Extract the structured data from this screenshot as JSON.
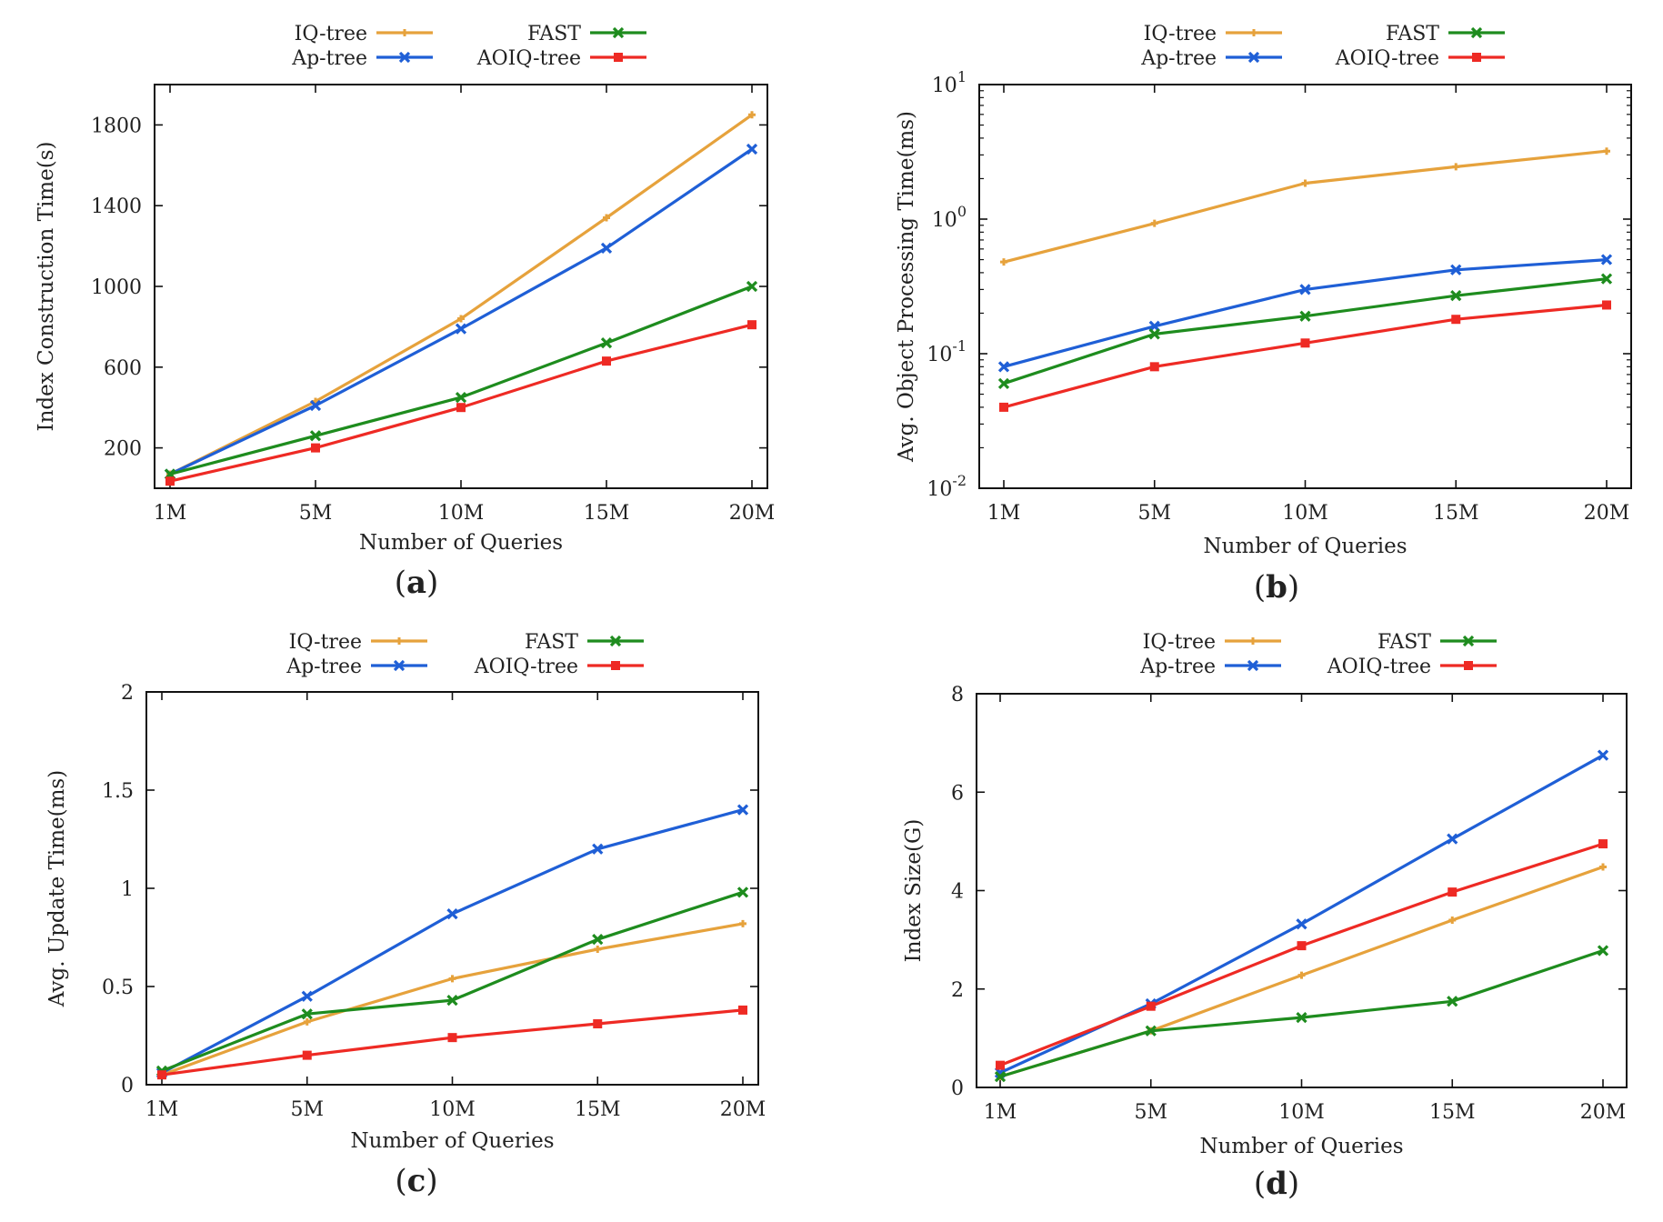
{
  "series_colors": {
    "IQ-tree": "#E6A23C",
    "Ap-tree": "#1F5FD6",
    "FAST": "#1E8C1E",
    "AOIQ-tree": "#EE2A24"
  },
  "chart_data": [
    {
      "id": "a",
      "type": "line",
      "caption": "a",
      "xlabel": "Number of Queries",
      "ylabel": "Index Construction Time(s)",
      "categories": [
        "1M",
        "5M",
        "10M",
        "15M",
        "20M"
      ],
      "yscale": "linear",
      "ylim": [
        0,
        2000
      ],
      "yticks": [
        200,
        600,
        1000,
        1400,
        1800
      ],
      "ytick_labels": [
        "200",
        "600",
        "1000",
        "1400",
        "1800"
      ],
      "legend": [
        "IQ-tree",
        "Ap-tree",
        "FAST",
        "AOIQ-tree"
      ],
      "series": [
        {
          "name": "IQ-tree",
          "values": [
            70,
            430,
            840,
            1340,
            1850
          ]
        },
        {
          "name": "Ap-tree",
          "values": [
            70,
            410,
            790,
            1190,
            1680
          ]
        },
        {
          "name": "FAST",
          "values": [
            70,
            260,
            450,
            720,
            1000
          ]
        },
        {
          "name": "AOIQ-tree",
          "values": [
            35,
            200,
            400,
            630,
            810
          ]
        }
      ]
    },
    {
      "id": "b",
      "type": "line",
      "caption": "b",
      "xlabel": "Number of Queries",
      "ylabel": "Avg. Object Processing Time(ms)",
      "categories": [
        "1M",
        "5M",
        "10M",
        "15M",
        "20M"
      ],
      "yscale": "log",
      "ylim": [
        0.01,
        10
      ],
      "yticks": [
        0.01,
        0.1,
        1,
        10
      ],
      "ytick_labels": [
        [
          "10",
          "-2"
        ],
        [
          "10",
          "-1"
        ],
        [
          "10",
          "0"
        ],
        [
          "10",
          "1"
        ]
      ],
      "legend": [
        "IQ-tree",
        "Ap-tree",
        "FAST",
        "AOIQ-tree"
      ],
      "series": [
        {
          "name": "IQ-tree",
          "values": [
            0.48,
            0.93,
            1.85,
            2.45,
            3.2
          ]
        },
        {
          "name": "Ap-tree",
          "values": [
            0.08,
            0.16,
            0.3,
            0.42,
            0.5
          ]
        },
        {
          "name": "FAST",
          "values": [
            0.06,
            0.14,
            0.19,
            0.27,
            0.36
          ]
        },
        {
          "name": "AOIQ-tree",
          "values": [
            0.04,
            0.08,
            0.12,
            0.18,
            0.23
          ]
        }
      ]
    },
    {
      "id": "c",
      "type": "line",
      "caption": "c",
      "xlabel": "Number of Queries",
      "ylabel": "Avg. Update Time(ms)",
      "categories": [
        "1M",
        "5M",
        "10M",
        "15M",
        "20M"
      ],
      "yscale": "linear",
      "ylim": [
        0,
        2
      ],
      "yticks": [
        0,
        0.5,
        1,
        1.5,
        2
      ],
      "ytick_labels": [
        "0",
        "0.5",
        "1",
        "1.5",
        "2"
      ],
      "legend": [
        "IQ-tree",
        "Ap-tree",
        "FAST",
        "AOIQ-tree"
      ],
      "series": [
        {
          "name": "IQ-tree",
          "values": [
            0.05,
            0.32,
            0.54,
            0.69,
            0.82
          ]
        },
        {
          "name": "Ap-tree",
          "values": [
            0.06,
            0.45,
            0.87,
            1.2,
            1.4
          ]
        },
        {
          "name": "FAST",
          "values": [
            0.07,
            0.36,
            0.43,
            0.74,
            0.98
          ]
        },
        {
          "name": "AOIQ-tree",
          "values": [
            0.05,
            0.15,
            0.24,
            0.31,
            0.38
          ]
        }
      ]
    },
    {
      "id": "d",
      "type": "line",
      "caption": "d",
      "xlabel": "Number of Queries",
      "ylabel": "Index Size(G)",
      "categories": [
        "1M",
        "5M",
        "10M",
        "15M",
        "20M"
      ],
      "yscale": "linear",
      "ylim": [
        0,
        8
      ],
      "yticks": [
        0,
        2,
        4,
        6,
        8
      ],
      "ytick_labels": [
        "0",
        "2",
        "4",
        "6",
        "8"
      ],
      "legend": [
        "IQ-tree",
        "Ap-tree",
        "FAST",
        "AOIQ-tree"
      ],
      "series": [
        {
          "name": "IQ-tree",
          "values": [
            0.22,
            1.15,
            2.28,
            3.4,
            4.48
          ]
        },
        {
          "name": "Ap-tree",
          "values": [
            0.3,
            1.7,
            3.32,
            5.05,
            6.75
          ]
        },
        {
          "name": "FAST",
          "values": [
            0.22,
            1.15,
            1.42,
            1.75,
            2.78
          ]
        },
        {
          "name": "AOIQ-tree",
          "values": [
            0.45,
            1.65,
            2.88,
            3.97,
            4.95
          ]
        }
      ]
    }
  ]
}
